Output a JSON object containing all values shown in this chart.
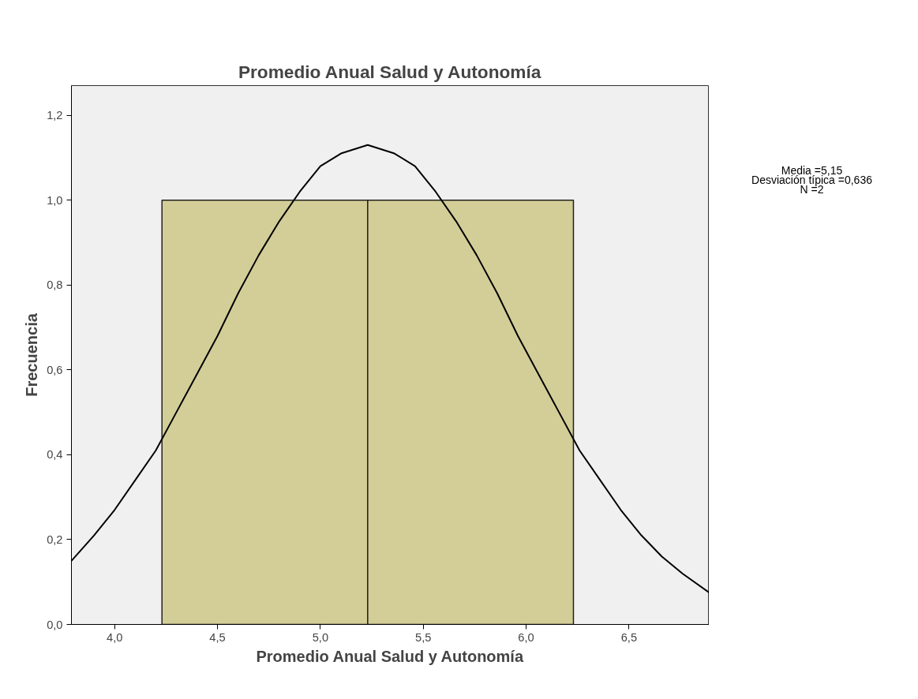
{
  "chart_data": {
    "type": "histogram",
    "title": "Promedio Anual Salud y Autonomía",
    "xlabel": "Promedio Anual Salud y Autonomía",
    "ylabel": "Frecuencia",
    "bins": [
      4.23,
      5.23,
      6.23
    ],
    "values": [
      1.0,
      1.0
    ],
    "color": "#d3ce97",
    "series": [
      {
        "type": "line",
        "color": "#000000",
        "x": [
          3.79,
          3.9,
          4.0,
          4.1,
          4.2,
          4.3,
          4.4,
          4.5,
          4.6,
          4.7,
          4.8,
          4.9,
          5.0,
          5.1,
          5.23,
          5.36,
          5.46,
          5.56,
          5.66,
          5.76,
          5.86,
          5.96,
          6.06,
          6.16,
          6.26,
          6.36,
          6.46,
          6.56,
          6.66,
          6.76,
          6.89
        ],
        "values": [
          0.15,
          0.21,
          0.27,
          0.34,
          0.41,
          0.5,
          0.59,
          0.68,
          0.78,
          0.87,
          0.95,
          1.02,
          1.08,
          1.11,
          1.13,
          1.11,
          1.08,
          1.02,
          0.95,
          0.87,
          0.78,
          0.68,
          0.59,
          0.5,
          0.41,
          0.34,
          0.27,
          0.21,
          0.16,
          0.12,
          0.075
        ]
      }
    ],
    "xlim": [
      3.79,
      6.89
    ],
    "ylim": [
      0,
      1.27
    ],
    "xticks": [
      {
        "value": 4.0,
        "label": "4,0"
      },
      {
        "value": 4.5,
        "label": "4,5"
      },
      {
        "value": 5.0,
        "label": "5,0"
      },
      {
        "value": 5.5,
        "label": "5,5"
      },
      {
        "value": 6.0,
        "label": "6,0"
      },
      {
        "value": 6.5,
        "label": "6,5"
      }
    ],
    "yticks": [
      {
        "value": 0,
        "label": "0,0"
      },
      {
        "value": 0.2,
        "label": "0,2"
      },
      {
        "value": 0.4,
        "label": "0,4"
      },
      {
        "value": 0.6,
        "label": "0,6"
      },
      {
        "value": 0.8,
        "label": "0,8"
      },
      {
        "value": 1.0,
        "label": "1,0"
      },
      {
        "value": 1.2,
        "label": "1,2"
      }
    ],
    "annotations": [
      "Media =5,15",
      "Desviación típica =0,636",
      "N =2"
    ],
    "grid": false
  }
}
